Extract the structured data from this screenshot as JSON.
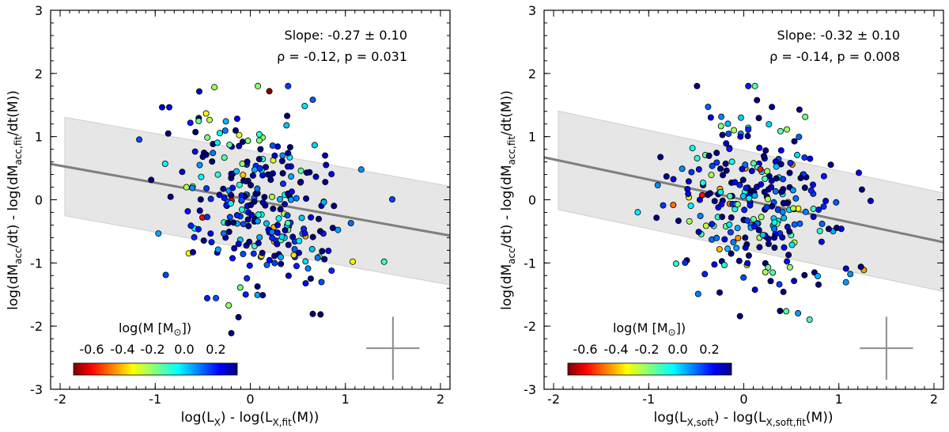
{
  "chart_data": [
    {
      "type": "scatter",
      "id": "left",
      "xlabel_parts": [
        "log(L",
        "X",
        ") - log(L",
        "X,fit",
        "(M))"
      ],
      "ylabel_parts": [
        "log(dM",
        "acc",
        "/dt) - log(dM",
        "acc,fit",
        "/dt(M))"
      ],
      "xlim": [
        -2.1,
        2.1
      ],
      "ylim": [
        -3,
        3
      ],
      "xticks": [
        -2,
        -1,
        0,
        1,
        2
      ],
      "yticks": [
        -3,
        -2,
        -1,
        0,
        1,
        2,
        3
      ],
      "annotation_slope": "Slope: -0.27 ± 0.10",
      "annotation_rho": "ρ = -0.12, p = 0.031",
      "fit": {
        "slope": -0.27,
        "intercept": 0.0,
        "band_halfwidth": 0.78
      },
      "errorbar": {
        "x": 1.5,
        "y": -2.35,
        "dx": 0.28,
        "dy": 0.5
      },
      "seed": 11
    },
    {
      "type": "scatter",
      "id": "right",
      "xlabel_parts": [
        "log(L",
        "X,soft",
        ") - log(L",
        "X,soft,fit",
        "(M))"
      ],
      "ylabel_parts": [
        "log(dM",
        "acc",
        "/dt) - log(dM",
        "acc,fit",
        "/dt(M))"
      ],
      "xlim": [
        -2.1,
        2.1
      ],
      "ylim": [
        -3,
        3
      ],
      "xticks": [
        -2,
        -1,
        0,
        1,
        2
      ],
      "yticks": [
        -3,
        -2,
        -1,
        0,
        1,
        2,
        3
      ],
      "annotation_slope": "Slope: -0.32 ± 0.10",
      "annotation_rho": "ρ = -0.14, p = 0.008",
      "fit": {
        "slope": -0.32,
        "intercept": 0.0,
        "band_halfwidth": 0.78
      },
      "errorbar": {
        "x": 1.5,
        "y": -2.35,
        "dx": 0.28,
        "dy": 0.5
      },
      "seed": 29
    }
  ],
  "colorbar": {
    "title_prefix": "log(M [M",
    "title_suffix": "])",
    "sun_symbol": "⊙",
    "range": [
      -0.75,
      0.35
    ],
    "ticks": [
      "-0.6",
      "-0.4",
      "-0.2",
      "0.0",
      "0.2"
    ]
  },
  "colors": {
    "band": "#e6e6e6",
    "fit_line": "#7f7f7f",
    "errorbar": "#8c8c8c"
  }
}
